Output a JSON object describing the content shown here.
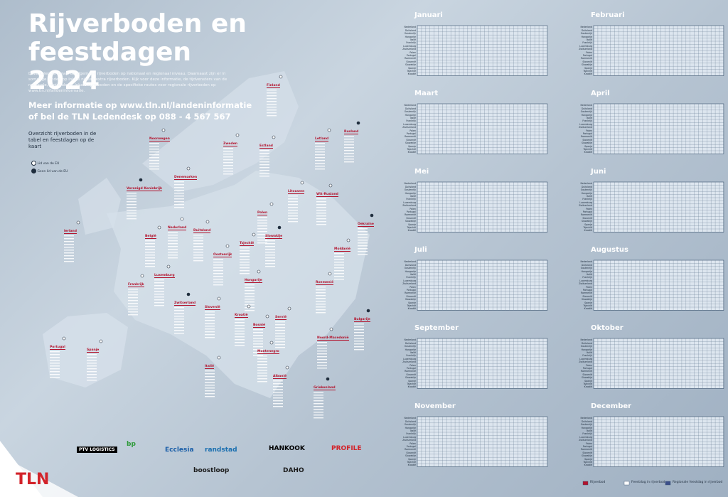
{
  "header": {
    "title": "Rijverboden en feestdagen 2024",
    "intro": "Deze kalender bevat de algemene rijverboden op nationaal en regionaal niveau. Daarnaast zijn er in sommige landen op lokaal niveau extra rijverboden. Kijk voor deze informatie, de tijdvensters van de nationale, regionale en lokale rijverboden en de specifieke routes voor regionale rijverboden op www.tln.nl/landeninformatie.",
    "contact": [
      "Meer informatie op www.tln.nl/landeninformatie",
      "of bel de TLN Ledendesk op 088 - 4 567 567"
    ],
    "overview": "Overzicht rijverboden in de tabel en feestdagen op de kaart"
  },
  "map_legend": [
    "Lid van de EU",
    "Geen lid van de EU"
  ],
  "map_countries": [
    "Finland",
    "Noorwegen",
    "Zweden",
    "Estland",
    "Rusland",
    "Letland",
    "Denemarken",
    "Litouwen",
    "Wit-Rusland",
    "Verenigd Koninkrijk",
    "Ierland",
    "Nederland",
    "Duitsland",
    "Polen",
    "Oekraïne",
    "België",
    "Tsjechië",
    "Moldavië",
    "Oostenrijk",
    "Slowakije",
    "Luxemburg",
    "Hongarije",
    "Roemenië",
    "Frankrijk",
    "Zwitserland",
    "Slovenië",
    "Kroatië",
    "Servië",
    "Bosnië",
    "Bulgarije",
    "Montenegro",
    "Noord-Macedonië",
    "Italië",
    "Albanië",
    "Griekenland",
    "Portugal",
    "Spanje"
  ],
  "months": [
    "Januari",
    "Februari",
    "Maart",
    "April",
    "Mei",
    "Juni",
    "Juli",
    "Augustus",
    "September",
    "Oktober",
    "November",
    "December"
  ],
  "calendar_countries": [
    "Nederland",
    "Duitsland",
    "Oostenrijk",
    "Hongarije",
    "Italië",
    "Frankrijk",
    "Luxemburg",
    "Zwitserland",
    "Polen",
    "Portugal",
    "Roemenië",
    "Slovenië",
    "Slowakije",
    "Spanje",
    "Tsjechië",
    "Kroatië"
  ],
  "calendar_legend": [
    "Rijverbod",
    "Feestdag in rijverbod",
    "Regionale feestdag in rijverbod"
  ],
  "sponsors": [
    "PTV LOGISTICS",
    "bp",
    "Ecclesia",
    "randstad",
    "HANKOOK",
    "PROFILE",
    "boostloop",
    "DAHO",
    "TLN"
  ]
}
